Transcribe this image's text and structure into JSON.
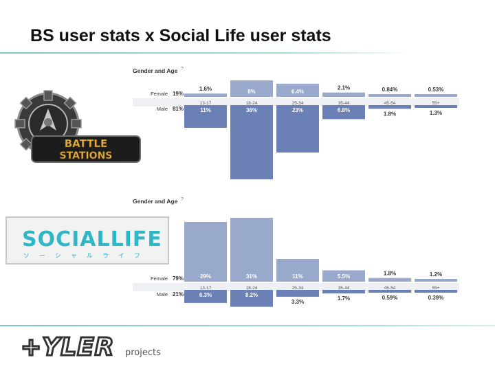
{
  "slide": {
    "title": "BS user stats x Social Life user stats",
    "logos": {
      "battle_stations": "BATTLE STATIONS",
      "social_life": "SOCIALLIFE",
      "social_life_katakana": "ソーシャルライフ",
      "tyler_brand": "TYLER",
      "tyler_sub": "projects"
    }
  },
  "colors": {
    "female_bar": "#99a9cc",
    "male_bar": "#6b80b4",
    "accent_rule": "#7fc6c4"
  },
  "chart_data": [
    {
      "type": "bar",
      "title": "Gender and Age",
      "title_mark": "?",
      "categories": [
        "13-17",
        "18-24",
        "25-34",
        "35-44",
        "45-54",
        "55+"
      ],
      "series": [
        {
          "name": "Female",
          "total": "19%",
          "values": [
            1.6,
            8,
            6.4,
            2.1,
            0.84,
            0.53
          ],
          "labels": [
            "1.6%",
            "8%",
            "6.4%",
            "2.1%",
            "0.84%",
            "0.53%"
          ]
        },
        {
          "name": "Male",
          "total": "81%",
          "values": [
            11,
            36,
            23,
            6.8,
            1.8,
            1.3
          ],
          "labels": [
            "11%",
            "36%",
            "23%",
            "6.8%",
            "1.8%",
            "1.3%"
          ]
        }
      ]
    },
    {
      "type": "bar",
      "title": "Gender and Age",
      "title_mark": "?",
      "categories": [
        "13-17",
        "18-24",
        "25-34",
        "35-44",
        "45-54",
        "55+"
      ],
      "series": [
        {
          "name": "Female",
          "total": "79%",
          "values": [
            29,
            31,
            11,
            5.5,
            1.8,
            1.2
          ],
          "labels": [
            "29%",
            "31%",
            "11%",
            "5.5%",
            "1.8%",
            "1.2%"
          ]
        },
        {
          "name": "Male",
          "total": "21%",
          "values": [
            6.3,
            8.2,
            3.3,
            1.7,
            0.59,
            0.39
          ],
          "labels": [
            "6.3%",
            "8.2%",
            "3.3%",
            "1.7%",
            "0.59%",
            "0.39%"
          ]
        }
      ]
    }
  ]
}
